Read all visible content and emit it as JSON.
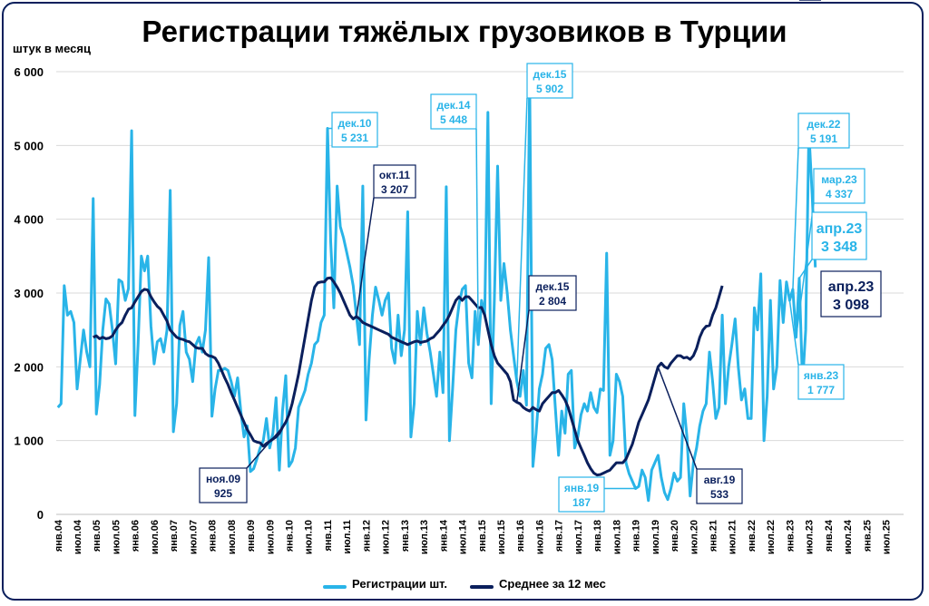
{
  "title": "Регистрации тяжёлых грузовиков в Турции",
  "unit_label": "штук в месяц",
  "colors": {
    "registrations": "#29b4e8",
    "average": "#0a1f5c",
    "grid": "#d9d9d9"
  },
  "legend": {
    "registrations": "Регистрации шт.",
    "average": "Среднее за 12 мес"
  },
  "chart_data": {
    "type": "line",
    "yticks": [
      "0",
      "1 000",
      "2 000",
      "3 000",
      "4 000",
      "5 000",
      "6 000"
    ],
    "ylim": [
      0,
      6000
    ],
    "xticks": [
      "янв.04",
      "июл.04",
      "янв.05",
      "июл.05",
      "янв.06",
      "июл.06",
      "янв.07",
      "июл.07",
      "янв.08",
      "июл.08",
      "янв.09",
      "июл.09",
      "янв.10",
      "июл.10",
      "янв.11",
      "июл.11",
      "янв.12",
      "июл.12",
      "янв.13",
      "июл.13",
      "янв.14",
      "июл.14",
      "янв.15",
      "июл.15",
      "янв.16",
      "июл.16",
      "янв.17",
      "июл.17",
      "янв.18",
      "июл.18",
      "янв.19",
      "июл.19",
      "янв.20",
      "июл.20",
      "янв.21",
      "июл.21",
      "янв.22",
      "июл.22",
      "янв.23",
      "июл.23",
      "янв.24",
      "июл.24",
      "янв.25",
      "июл.25"
    ],
    "x_start": "янв.04",
    "series": [
      {
        "name": "Регистрации шт.",
        "values": [
          1450,
          1500,
          3100,
          2700,
          2750,
          2600,
          1700,
          2100,
          2500,
          2200,
          2000,
          4280,
          1360,
          1760,
          2500,
          2920,
          2850,
          2500,
          2040,
          3180,
          3150,
          2900,
          3060,
          5200,
          1340,
          2300,
          3500,
          3300,
          3500,
          2550,
          2040,
          2340,
          2380,
          2200,
          2500,
          4390,
          1120,
          1500,
          2560,
          2750,
          2200,
          2100,
          1800,
          2300,
          2400,
          2200,
          2500,
          3480,
          1330,
          1700,
          1950,
          1950,
          1980,
          1950,
          1800,
          1600,
          1850,
          1400,
          1050,
          1200,
          580,
          620,
          750,
          900,
          1000,
          1300,
          900,
          1100,
          1580,
          600,
          1400,
          1880,
          650,
          720,
          900,
          1450,
          1560,
          1680,
          1900,
          2050,
          2300,
          2350,
          2600,
          2700,
          5231,
          3700,
          2800,
          4450,
          3900,
          3750,
          3550,
          3350,
          3100,
          2700,
          2300,
          4450,
          1280,
          2100,
          2700,
          3080,
          2900,
          2700,
          2900,
          3000,
          2250,
          2050,
          2700,
          2150,
          2500,
          4100,
          1050,
          1500,
          2750,
          2300,
          2800,
          2450,
          2200,
          1900,
          1600,
          2200,
          1650,
          4440,
          1000,
          1700,
          2500,
          2850,
          3050,
          3100,
          2050,
          1850,
          2750,
          2300,
          2900,
          2700,
          5448,
          1500,
          2900,
          4720,
          2900,
          3400,
          3000,
          2500,
          2150,
          1800,
          1600,
          1950,
          1480,
          5902,
          650,
          1100,
          1700,
          1900,
          2250,
          2300,
          2100,
          1450,
          800,
          1400,
          1100,
          1900,
          1950,
          900,
          1050,
          1350,
          1500,
          1400,
          1650,
          1450,
          1380,
          1700,
          1680,
          3540,
          800,
          1000,
          1900,
          1800,
          1600,
          700,
          550,
          450,
          350,
          380,
          600,
          500,
          187,
          600,
          700,
          800,
          500,
          300,
          200,
          350,
          560,
          450,
          500,
          1500,
          1050,
          250,
          700,
          900,
          1200,
          1400,
          1500,
          2200,
          1800,
          1300,
          1450,
          2700,
          1500,
          2000,
          2300,
          2650,
          2000,
          1550,
          1700,
          1300,
          1300,
          2800,
          2500,
          3260,
          1000,
          1600,
          2900,
          1700,
          2000,
          3170,
          2600,
          3150,
          2900,
          3050,
          2400,
          3200,
          1777,
          2500,
          5191,
          4337,
          3348
        ],
        "labels": [
          {
            "month": 84,
            "label": "дек.10",
            "value": "5 231"
          },
          {
            "month": 131,
            "label": "дек.14",
            "value": "5 448"
          },
          {
            "month": 143,
            "label": "дек.15",
            "value": "5 902"
          },
          {
            "month": 180,
            "label": "янв.19",
            "value": "187"
          },
          {
            "month": 228,
            "label": "янв.23",
            "value": "1 777"
          },
          {
            "month": 229,
            "label": "дек.22",
            "value": "5 191"
          },
          {
            "month": 230,
            "label": "мар.23",
            "value": "4 337"
          },
          {
            "month": 231,
            "label": "апр.23",
            "value": "3 348"
          }
        ]
      },
      {
        "name": "Среднее за 12 мес",
        "start_month": 11,
        "values": [
          2400,
          2420,
          2380,
          2400,
          2380,
          2390,
          2420,
          2500,
          2560,
          2600,
          2700,
          2780,
          2800,
          2880,
          2950,
          3020,
          3050,
          3040,
          2950,
          2880,
          2820,
          2780,
          2700,
          2620,
          2500,
          2450,
          2400,
          2380,
          2370,
          2350,
          2340,
          2300,
          2260,
          2250,
          2250,
          2180,
          2150,
          2140,
          2120,
          2050,
          1950,
          1850,
          1760,
          1650,
          1550,
          1450,
          1350,
          1250,
          1150,
          1080,
          1000,
          980,
          970,
          925,
          960,
          990,
          1020,
          1050,
          1100,
          1180,
          1250,
          1350,
          1500,
          1700,
          1900,
          2150,
          2400,
          2650,
          2900,
          3080,
          3140,
          3150,
          3150,
          3200,
          3207,
          3150,
          3080,
          3000,
          2900,
          2800,
          2700,
          2650,
          2680,
          2650,
          2600,
          2580,
          2560,
          2540,
          2520,
          2500,
          2480,
          2460,
          2440,
          2400,
          2380,
          2360,
          2340,
          2320,
          2300,
          2320,
          2340,
          2350,
          2330,
          2340,
          2350,
          2380,
          2400,
          2450,
          2500,
          2560,
          2620,
          2700,
          2800,
          2900,
          2950,
          2900,
          2950,
          2950,
          2900,
          2850,
          2800,
          2804,
          2700,
          2500,
          2300,
          2150,
          2050,
          2000,
          1950,
          1900,
          1800,
          1550,
          1520,
          1500,
          1450,
          1420,
          1400,
          1450,
          1420,
          1400,
          1500,
          1550,
          1600,
          1650,
          1650,
          1680,
          1620,
          1550,
          1450,
          1300,
          1150,
          1000,
          900,
          800,
          700,
          620,
          560,
          533,
          540,
          560,
          580,
          600,
          650,
          700,
          700,
          700,
          750,
          850,
          950,
          1100,
          1250,
          1350,
          1450,
          1550,
          1700,
          1850,
          2000,
          2050,
          2000,
          1980,
          2050,
          2100,
          2150,
          2150,
          2120,
          2130,
          2100,
          2150,
          2250,
          2400,
          2500,
          2550,
          2560,
          2700,
          2800,
          2950,
          3098
        ],
        "labels": [
          {
            "month": 70,
            "label": "ноя.09",
            "value": "925"
          },
          {
            "month": 93,
            "label": "окт.11",
            "value": "3 207"
          },
          {
            "month": 143,
            "label": "дек.15",
            "value": "2 804"
          },
          {
            "month": 187,
            "label": "авг.19",
            "value": "533"
          },
          {
            "month": 231,
            "label": "апр.23",
            "value": "3 098"
          }
        ]
      }
    ]
  }
}
